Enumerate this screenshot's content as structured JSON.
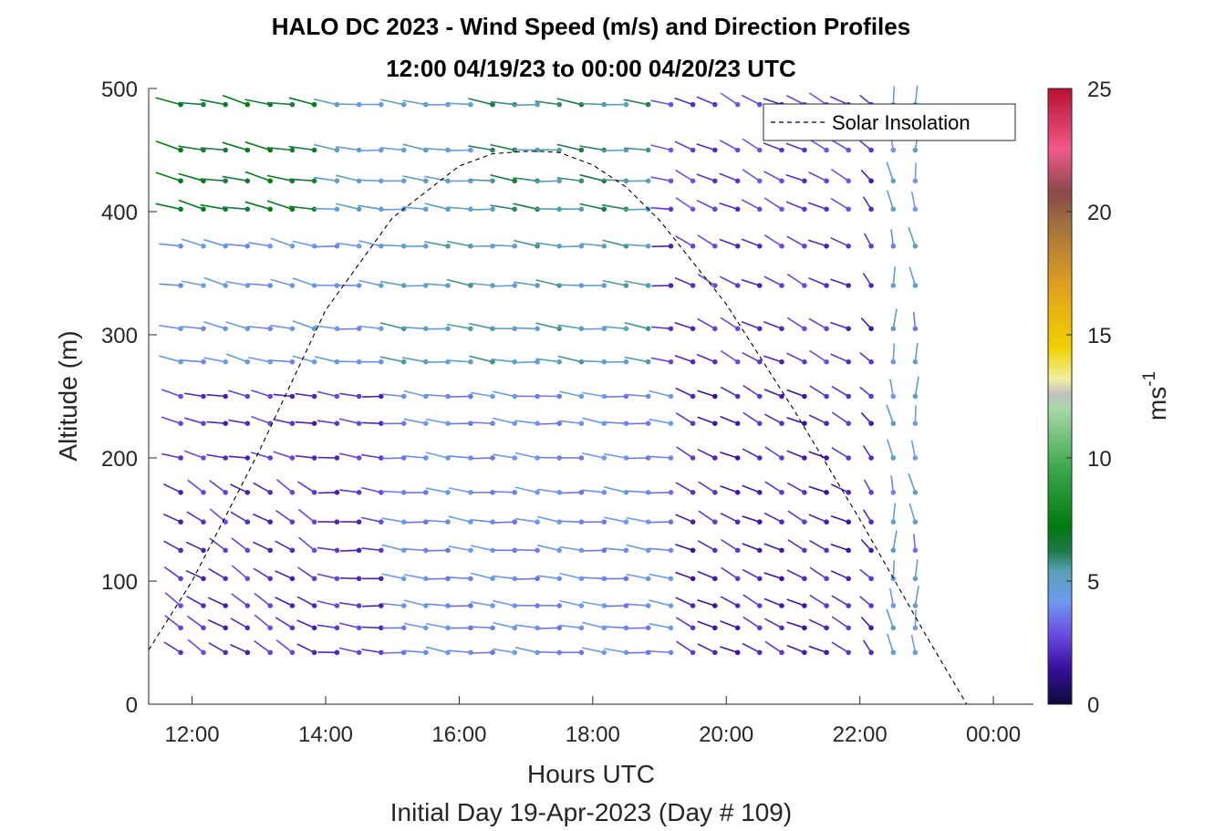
{
  "chart_data": {
    "type": "wind-barb-profile",
    "title_line1": "HALO DC 2023 - Wind Speed (m/s) and Direction Profiles",
    "title_line2": "12:00 04/19/23 to 00:00 04/20/23  UTC",
    "xlabel": "Hours UTC",
    "ylabel": "Altitude (m)",
    "subtitle": "Initial Day 19-Apr-2023 (Day # 109)",
    "xlim": [
      11.35,
      24.6
    ],
    "ylim": [
      0,
      500
    ],
    "x_ticks": [
      {
        "value": 12,
        "label": "12:00"
      },
      {
        "value": 14,
        "label": "14:00"
      },
      {
        "value": 16,
        "label": "16:00"
      },
      {
        "value": 18,
        "label": "18:00"
      },
      {
        "value": 20,
        "label": "20:00"
      },
      {
        "value": 22,
        "label": "22:00"
      },
      {
        "value": 24,
        "label": "00:00"
      }
    ],
    "y_ticks": [
      0,
      100,
      200,
      300,
      400,
      500
    ],
    "colorbar": {
      "label_base": "ms",
      "label_exp": "-1",
      "range": [
        0,
        25
      ],
      "ticks": [
        0,
        5,
        10,
        15,
        20,
        25
      ],
      "stops": [
        {
          "v": 0,
          "c": "#0c0a3a"
        },
        {
          "v": 1.5,
          "c": "#3a10a0"
        },
        {
          "v": 2.8,
          "c": "#6a4ae0"
        },
        {
          "v": 4.2,
          "c": "#6f9af0"
        },
        {
          "v": 5.4,
          "c": "#5aa0b8"
        },
        {
          "v": 6.2,
          "c": "#1e7a4a"
        },
        {
          "v": 7.2,
          "c": "#007a10"
        },
        {
          "v": 9.5,
          "c": "#3aa64a"
        },
        {
          "v": 12.0,
          "c": "#a8d8a8"
        },
        {
          "v": 12.6,
          "c": "#c0c0c0"
        },
        {
          "v": 13.2,
          "c": "#f0f0a0"
        },
        {
          "v": 14.5,
          "c": "#f0d000"
        },
        {
          "v": 17.0,
          "c": "#e0a020"
        },
        {
          "v": 19.5,
          "c": "#a07040"
        },
        {
          "v": 20.8,
          "c": "#8a4848"
        },
        {
          "v": 22.5,
          "c": "#f05a8a"
        },
        {
          "v": 25.0,
          "c": "#b81030"
        }
      ]
    },
    "legend": {
      "entries": [
        "Solar Insolation"
      ],
      "position": "top-right"
    },
    "solar_insolation": {
      "style": "dashed",
      "x": [
        11.35,
        12,
        13,
        14,
        15,
        16,
        16.5,
        17,
        17.2,
        17.5,
        18,
        18.5,
        19,
        20,
        21,
        22,
        23,
        23.6,
        24.0,
        24.6
      ],
      "y": [
        44,
        100,
        205,
        320,
        395,
        437,
        447,
        449,
        449,
        448,
        438,
        420,
        393,
        325,
        240,
        150,
        55,
        0,
        0,
        0
      ]
    },
    "barb_times": [
      11.83,
      12.17,
      12.5,
      12.83,
      13.17,
      13.5,
      13.83,
      14.17,
      14.5,
      14.83,
      15.17,
      15.5,
      15.83,
      16.17,
      16.5,
      16.83,
      17.17,
      17.5,
      17.83,
      18.17,
      18.5,
      18.83,
      19.17,
      19.5,
      19.83,
      20.17,
      20.5,
      20.83,
      21.17,
      21.5,
      21.83,
      22.17,
      22.5,
      22.83
    ],
    "barb_heights": [
      42,
      62,
      80,
      102,
      125,
      148,
      172,
      200,
      228,
      250,
      278,
      305,
      340,
      372,
      402,
      425,
      450,
      487
    ]
  }
}
